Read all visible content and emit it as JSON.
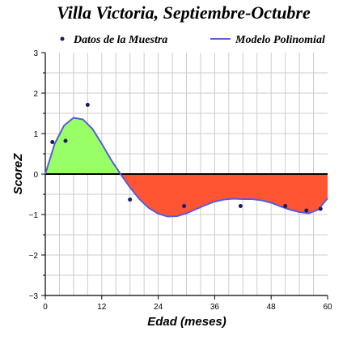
{
  "chart_data": {
    "type": "line",
    "title": "Villa Victoria, Septiembre-Octubre",
    "xlabel": "Edad (meses)",
    "ylabel": "ScoreZ",
    "xlim": [
      0,
      60
    ],
    "ylim": [
      -3,
      3
    ],
    "x_ticks": [
      0,
      12,
      24,
      36,
      48,
      60
    ],
    "y_ticks": [
      -3,
      -2,
      -1,
      0,
      1,
      2,
      3
    ],
    "grid": true,
    "legend_position": "top",
    "legend": [
      "Datos de la Muestra",
      "Modelo Polinomial"
    ],
    "series": [
      {
        "name": "Datos de la Muestra",
        "kind": "scatter",
        "color": "#1a1a66",
        "points": [
          {
            "x": 1.5,
            "y": 0.79
          },
          {
            "x": 4.3,
            "y": 0.82
          },
          {
            "x": 9.0,
            "y": 1.71
          },
          {
            "x": 18.0,
            "y": -0.63
          },
          {
            "x": 29.5,
            "y": -0.79
          },
          {
            "x": 41.5,
            "y": -0.79
          },
          {
            "x": 51.0,
            "y": -0.79
          },
          {
            "x": 55.5,
            "y": -0.9
          },
          {
            "x": 58.5,
            "y": -0.86
          }
        ]
      },
      {
        "name": "Modelo Polinomial",
        "kind": "line",
        "color": "#5a5adc",
        "points": [
          {
            "x": 0,
            "y": 0.0
          },
          {
            "x": 2,
            "y": 0.75
          },
          {
            "x": 4,
            "y": 1.2
          },
          {
            "x": 6,
            "y": 1.39
          },
          {
            "x": 8,
            "y": 1.35
          },
          {
            "x": 10,
            "y": 1.12
          },
          {
            "x": 12,
            "y": 0.75
          },
          {
            "x": 14,
            "y": 0.35
          },
          {
            "x": 16,
            "y": 0.0
          },
          {
            "x": 18,
            "y": -0.33
          },
          {
            "x": 20,
            "y": -0.62
          },
          {
            "x": 22,
            "y": -0.84
          },
          {
            "x": 24,
            "y": -0.98
          },
          {
            "x": 26,
            "y": -1.05
          },
          {
            "x": 28,
            "y": -1.04
          },
          {
            "x": 30,
            "y": -0.97
          },
          {
            "x": 32,
            "y": -0.87
          },
          {
            "x": 34,
            "y": -0.77
          },
          {
            "x": 36,
            "y": -0.68
          },
          {
            "x": 38,
            "y": -0.63
          },
          {
            "x": 40,
            "y": -0.61
          },
          {
            "x": 42,
            "y": -0.62
          },
          {
            "x": 44,
            "y": -0.62
          },
          {
            "x": 46,
            "y": -0.65
          },
          {
            "x": 48,
            "y": -0.71
          },
          {
            "x": 50,
            "y": -0.8
          },
          {
            "x": 52,
            "y": -0.88
          },
          {
            "x": 54,
            "y": -0.94
          },
          {
            "x": 56,
            "y": -0.97
          },
          {
            "x": 58,
            "y": -0.88
          },
          {
            "x": 60,
            "y": -0.6
          }
        ]
      }
    ],
    "fill_positive_color": "#99ff66",
    "fill_negative_color": "#ff5533",
    "zero_line_color": "#000000"
  }
}
